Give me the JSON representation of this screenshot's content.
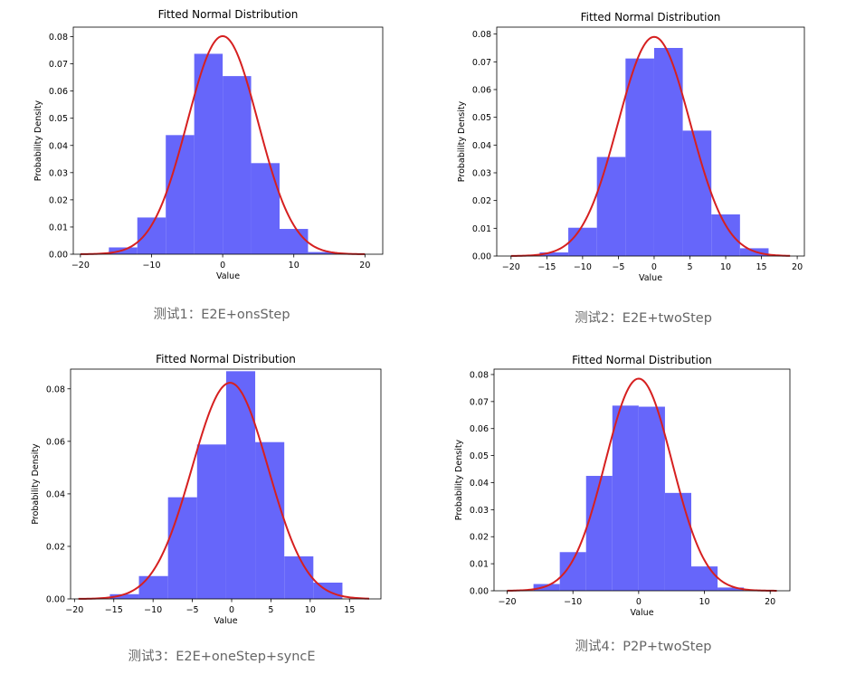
{
  "chart_data": [
    {
      "type": "bar",
      "title": "Fitted Normal Distribution",
      "xlabel": "Value",
      "ylabel": "Probability Density",
      "caption": "测试1：E2E+onsStep",
      "xlim": [
        -21,
        22.5
      ],
      "ylim": [
        0,
        0.0835
      ],
      "xticks": [
        -20,
        -10,
        0,
        10,
        20
      ],
      "xtick_labels": [
        "−20",
        "−10",
        "0",
        "10",
        "20"
      ],
      "yticks": [
        0,
        0.01,
        0.02,
        0.03,
        0.04,
        0.05,
        0.06,
        0.07,
        0.08
      ],
      "ytick_labels": [
        "0.00",
        "0.01",
        "0.02",
        "0.03",
        "0.04",
        "0.05",
        "0.06",
        "0.07",
        "0.08"
      ],
      "bin_edges": [
        -16,
        -12,
        -8,
        -4,
        0,
        4,
        8,
        12,
        16
      ],
      "values": [
        0.0025,
        0.0135,
        0.0438,
        0.0737,
        0.0655,
        0.0335,
        0.0093,
        0.0008
      ],
      "fit": {
        "mean": 0,
        "peak": 0.0802,
        "range": [
          -20,
          20
        ]
      }
    },
    {
      "type": "bar",
      "title": "Fitted Normal Distribution",
      "xlabel": "Value",
      "ylabel": "Probability Density",
      "caption": "测试2：E2E+twoStep",
      "xlim": [
        -22,
        21
      ],
      "ylim": [
        0,
        0.0825
      ],
      "xticks": [
        -20,
        -15,
        -10,
        -5,
        0,
        5,
        10,
        15,
        20
      ],
      "xtick_labels": [
        "−20",
        "−15",
        "−10",
        "−5",
        "0",
        "5",
        "10",
        "15",
        "20"
      ],
      "yticks": [
        0,
        0.01,
        0.02,
        0.03,
        0.04,
        0.05,
        0.06,
        0.07,
        0.08
      ],
      "ytick_labels": [
        "0.00",
        "0.01",
        "0.02",
        "0.03",
        "0.04",
        "0.05",
        "0.06",
        "0.07",
        "0.08"
      ],
      "bin_edges": [
        -16,
        -12,
        -8,
        -4,
        0,
        4,
        8,
        12,
        16
      ],
      "values": [
        0.0013,
        0.0102,
        0.0357,
        0.0712,
        0.075,
        0.0452,
        0.015,
        0.0028
      ],
      "fit": {
        "mean": 0,
        "peak": 0.079,
        "range": [
          -20,
          19
        ]
      }
    },
    {
      "type": "bar",
      "title": "Fitted Normal Distribution",
      "xlabel": "Value",
      "ylabel": "Probability Density",
      "caption": "测试3：E2E+oneStep+syncE",
      "xlim": [
        -20.5,
        19
      ],
      "ylim": [
        0,
        0.0875
      ],
      "xticks": [
        -20,
        -15,
        -10,
        -5,
        0,
        5,
        10,
        15
      ],
      "xtick_labels": [
        "−20",
        "−15",
        "−10",
        "−5",
        "0",
        "5",
        "10",
        "15"
      ],
      "yticks": [
        0,
        0.02,
        0.04,
        0.06,
        0.08
      ],
      "ytick_labels": [
        "0.00",
        "0.02",
        "0.04",
        "0.06",
        "0.08"
      ],
      "bin_edges": [
        -15.5,
        -11.8,
        -8.1,
        -4.4,
        -0.7,
        3.0,
        6.7,
        10.4,
        14.1
      ],
      "values": [
        0.0018,
        0.0087,
        0.0387,
        0.0588,
        0.0867,
        0.0597,
        0.0162,
        0.0062
      ],
      "fit": {
        "mean": -0.2,
        "peak": 0.0823,
        "range": [
          -19.5,
          17.5
        ]
      }
    },
    {
      "type": "bar",
      "title": "Fitted Normal Distribution",
      "xlabel": "Value",
      "ylabel": "Probability Density",
      "caption": "测试4：P2P+twoStep",
      "xlim": [
        -22,
        23
      ],
      "ylim": [
        0,
        0.082
      ],
      "xticks": [
        -20,
        -10,
        0,
        10,
        20
      ],
      "xtick_labels": [
        "−20",
        "−10",
        "0",
        "10",
        "20"
      ],
      "yticks": [
        0,
        0.01,
        0.02,
        0.03,
        0.04,
        0.05,
        0.06,
        0.07,
        0.08
      ],
      "ytick_labels": [
        "0.00",
        "0.01",
        "0.02",
        "0.03",
        "0.04",
        "0.05",
        "0.06",
        "0.07",
        "0.08"
      ],
      "bin_edges": [
        -16,
        -12,
        -8,
        -4,
        0,
        4,
        8,
        12,
        16
      ],
      "values": [
        0.0025,
        0.0143,
        0.0425,
        0.0685,
        0.0681,
        0.0362,
        0.009,
        0.0012
      ],
      "fit": {
        "mean": 0,
        "peak": 0.0785,
        "range": [
          -20,
          21
        ]
      }
    }
  ]
}
